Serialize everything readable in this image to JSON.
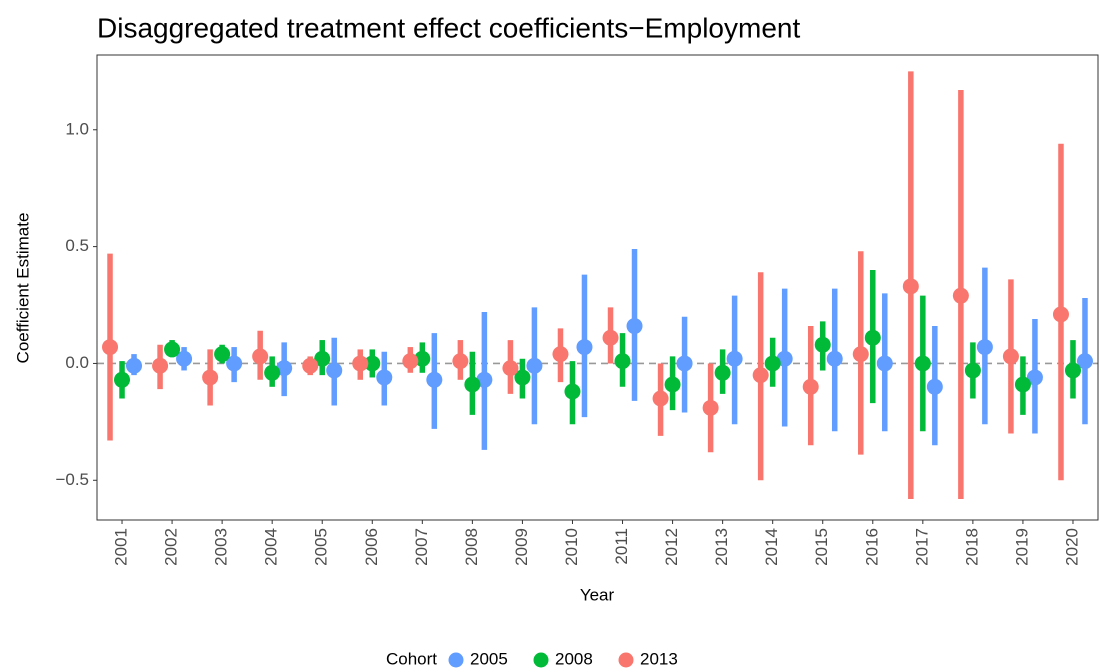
{
  "chart_data": {
    "type": "pointrange",
    "title": "Disaggregated treatment effect coefficients−Employment",
    "x_label": "Year",
    "y_label": "Coefficient Estimate",
    "legend_title": "Cohort",
    "legend_position": "bottom",
    "categories": [
      "2001",
      "2002",
      "2003",
      "2004",
      "2005",
      "2006",
      "2007",
      "2008",
      "2009",
      "2010",
      "2011",
      "2012",
      "2013",
      "2014",
      "2015",
      "2016",
      "2017",
      "2018",
      "2019",
      "2020"
    ],
    "series": [
      {
        "name": "2005",
        "color": "#619CFF",
        "values": [
          -0.01,
          0.02,
          0.0,
          -0.02,
          -0.03,
          -0.06,
          -0.07,
          -0.07,
          -0.01,
          0.07,
          0.16,
          0.0,
          0.02,
          0.02,
          0.02,
          0.0,
          -0.1,
          0.07,
          -0.06,
          0.01
        ],
        "lower": [
          -0.05,
          -0.03,
          -0.08,
          -0.14,
          -0.18,
          -0.18,
          -0.28,
          -0.37,
          -0.26,
          -0.23,
          -0.16,
          -0.21,
          -0.26,
          -0.27,
          -0.29,
          -0.29,
          -0.35,
          -0.26,
          -0.3,
          -0.26
        ],
        "upper": [
          0.04,
          0.07,
          0.07,
          0.09,
          0.11,
          0.05,
          0.13,
          0.22,
          0.24,
          0.38,
          0.49,
          0.2,
          0.29,
          0.32,
          0.32,
          0.3,
          0.16,
          0.41,
          0.19,
          0.28
        ]
      },
      {
        "name": "2008",
        "color": "#00BA38",
        "values": [
          -0.07,
          0.06,
          0.04,
          -0.04,
          0.02,
          0.0,
          0.02,
          -0.09,
          -0.06,
          -0.12,
          0.01,
          -0.09,
          -0.04,
          0.0,
          0.08,
          0.11,
          0.0,
          -0.03,
          -0.09,
          -0.03
        ],
        "lower": [
          -0.15,
          0.03,
          0.0,
          -0.1,
          -0.05,
          -0.06,
          -0.04,
          -0.22,
          -0.15,
          -0.26,
          -0.1,
          -0.2,
          -0.13,
          -0.1,
          -0.03,
          -0.17,
          -0.29,
          -0.15,
          -0.22,
          -0.15
        ],
        "upper": [
          0.01,
          0.1,
          0.08,
          0.03,
          0.1,
          0.06,
          0.09,
          0.05,
          0.02,
          0.01,
          0.13,
          0.03,
          0.06,
          0.11,
          0.18,
          0.4,
          0.29,
          0.09,
          0.03,
          0.1
        ]
      },
      {
        "name": "2013",
        "color": "#F8766D",
        "values": [
          0.07,
          -0.01,
          -0.06,
          0.03,
          -0.01,
          0.0,
          0.01,
          0.01,
          -0.02,
          0.04,
          0.11,
          -0.15,
          -0.19,
          -0.05,
          -0.1,
          0.04,
          0.33,
          0.29,
          0.03,
          0.21
        ],
        "lower": [
          -0.33,
          -0.11,
          -0.18,
          -0.07,
          -0.05,
          -0.07,
          -0.04,
          -0.07,
          -0.13,
          -0.08,
          0.0,
          -0.31,
          -0.38,
          -0.5,
          -0.35,
          -0.39,
          -0.58,
          -0.58,
          -0.3,
          -0.5
        ],
        "upper": [
          0.47,
          0.08,
          0.06,
          0.14,
          0.03,
          0.06,
          0.07,
          0.1,
          0.1,
          0.15,
          0.24,
          0.0,
          0.0,
          0.39,
          0.16,
          0.48,
          1.25,
          1.17,
          0.36,
          0.94
        ]
      }
    ],
    "ylim": [
      -0.67,
      1.32
    ],
    "yticks": [
      {
        "value": -0.5,
        "label": "−0.5"
      },
      {
        "value": 0,
        "label": "0.0"
      },
      0.5,
      {
        "value": 1,
        "label": "1.0"
      }
    ],
    "hline": 0,
    "grid": false
  }
}
